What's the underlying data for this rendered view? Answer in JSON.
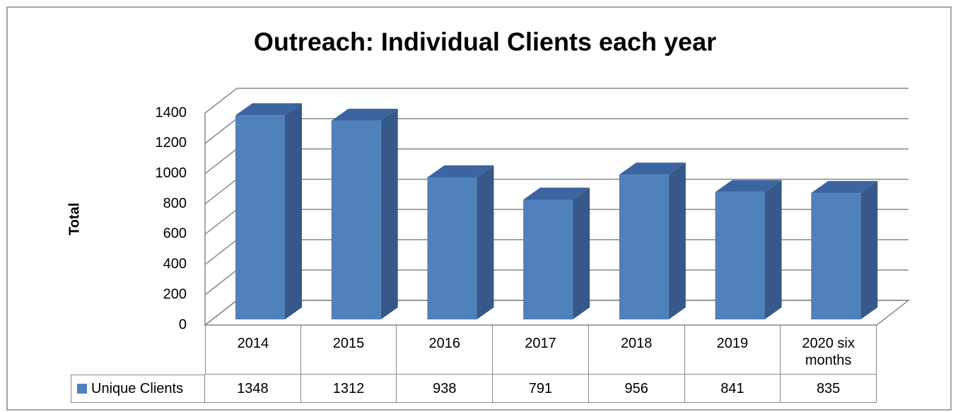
{
  "chart_data": {
    "type": "bar3d",
    "title": "Outreach: Individual Clients each year",
    "y_label": "Total",
    "categories": [
      "2014",
      "2015",
      "2016",
      "2017",
      "2018",
      "2019",
      "2020 six months"
    ],
    "series": [
      {
        "name": "Unique Clients",
        "color": "#4f81bd",
        "values": [
          1348,
          1312,
          938,
          791,
          956,
          841,
          835
        ]
      }
    ],
    "ylim": [
      0,
      1400
    ],
    "yticks": [
      0,
      200,
      400,
      600,
      800,
      1000,
      1200,
      1400
    ],
    "grid": true
  }
}
